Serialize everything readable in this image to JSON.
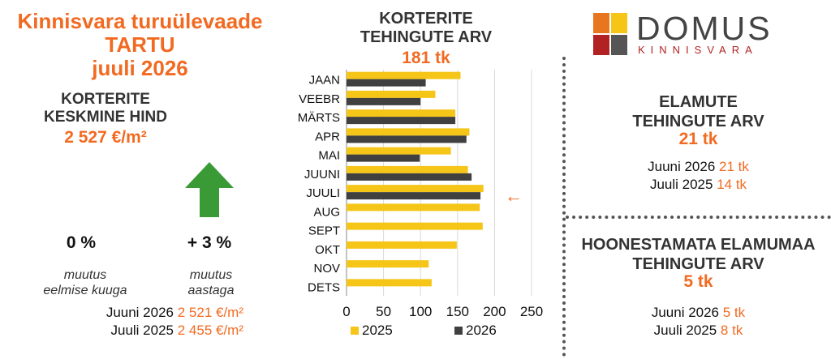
{
  "header": {
    "title_line1": "Kinnisvara turuülevaade",
    "title_line2": "TARTU",
    "title_line3": "juuli 2026"
  },
  "price": {
    "label_line1": "KORTERITE",
    "label_line2": "KESKMINE HIND",
    "value": "2 527 €/m²",
    "trend_icon": "green-up-arrow-icon",
    "monthly_change": "0 %",
    "monthly_label_line1": "muutus",
    "monthly_label_line2": "eelmise kuuga",
    "yearly_change": "+ 3 %",
    "yearly_label_line1": "muutus",
    "yearly_label_line2": "aastaga",
    "history": [
      {
        "label": "Juuni 2026",
        "value": "2 521 €/m²"
      },
      {
        "label": "Juuli 2025",
        "value": "2 455 €/m²"
      }
    ]
  },
  "chart_block": {
    "title_line1": "KORTERITE",
    "title_line2": "TEHINGUTE ARV",
    "total": "181 tk",
    "current_marker": "←"
  },
  "chart_data": {
    "type": "bar",
    "orientation": "horizontal",
    "categories": [
      "JAAN",
      "VEEBR",
      "MÄRTS",
      "APR",
      "MAI",
      "JUUNI",
      "JUULI",
      "AUG",
      "SEPT",
      "OKT",
      "NOV",
      "DETS"
    ],
    "series": [
      {
        "name": "2025",
        "color": "#f5c518",
        "values": [
          154,
          120,
          147,
          166,
          141,
          164,
          185,
          180,
          184,
          149,
          111,
          115
        ]
      },
      {
        "name": "2026",
        "color": "#404040",
        "values": [
          107,
          100,
          147,
          162,
          99,
          169,
          181,
          null,
          null,
          null,
          null,
          null
        ]
      }
    ],
    "xlim": [
      0,
      250
    ],
    "xticks": [
      "0",
      "50",
      "100",
      "150",
      "200",
      "250"
    ],
    "grid": true,
    "legend": "bottom"
  },
  "logo": {
    "word": "DOMUS",
    "sub": "KINNISVARA",
    "colors": [
      "#e8761e",
      "#f5c518",
      "#b22222",
      "#555555"
    ]
  },
  "houses": {
    "title_line1": "ELAMUTE",
    "title_line2": "TEHINGUTE ARV",
    "value": "21 tk",
    "history": [
      {
        "label": "Juuni 2026",
        "value": "21 tk"
      },
      {
        "label": "Juuli 2025",
        "value": "14 tk"
      }
    ]
  },
  "land": {
    "title_line1": "HOONESTAMATA ELAMUMAA",
    "title_line2": "TEHINGUTE ARV",
    "value": "5 tk",
    "history": [
      {
        "label": "Juuni 2026",
        "value": "5 tk"
      },
      {
        "label": "Juuli 2025",
        "value": "8 tk"
      }
    ]
  }
}
